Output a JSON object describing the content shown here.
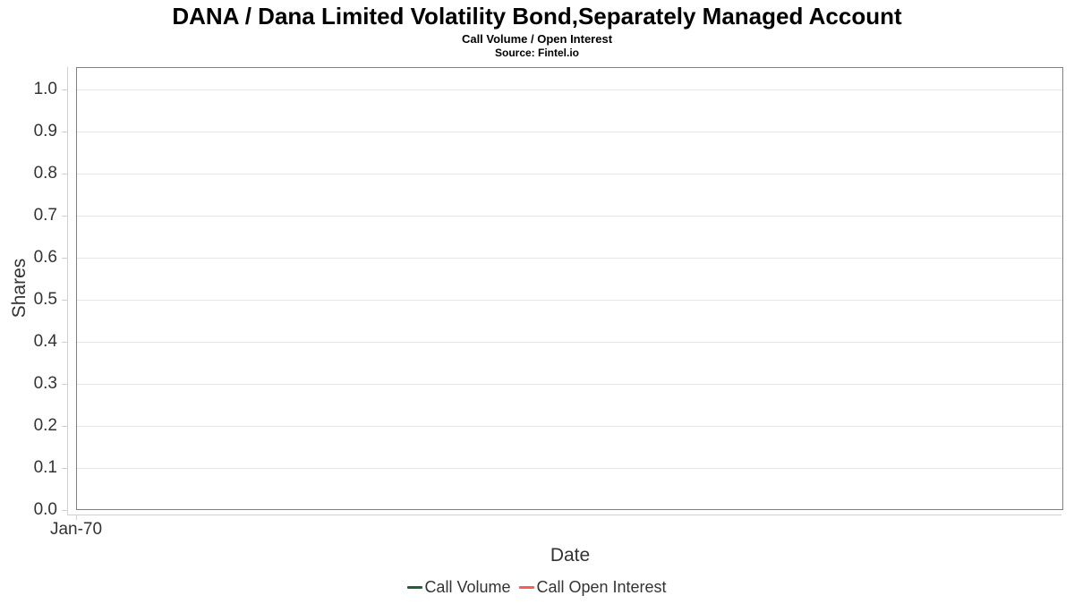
{
  "chart_data": {
    "type": "line",
    "title": "DANA / Dana Limited Volatility Bond,Separately Managed Account",
    "subtitle": "Call Volume / Open Interest",
    "source": "Source: Fintel.io",
    "xlabel": "Date",
    "ylabel": "Shares",
    "xticks": [
      "Jan-70"
    ],
    "ytick_labels": [
      "0.0",
      "0.1",
      "0.2",
      "0.3",
      "0.4",
      "0.5",
      "0.6",
      "0.7",
      "0.8",
      "0.9",
      "1.0"
    ],
    "ylim": [
      0.0,
      1.05
    ],
    "xlim_note": "single tick Jan-70 at left edge",
    "grid": true,
    "legend_position": "bottom-center",
    "series": [
      {
        "name": "Call Volume",
        "color": "#275b3d",
        "x": [],
        "values": []
      },
      {
        "name": "Call Open Interest",
        "color": "#fb5b5b",
        "x": [],
        "values": []
      }
    ],
    "colors": {
      "plot_border": "#808080",
      "gridline": "#e6e6e6",
      "axis_line": "#d0d0d0",
      "tick_label": "#333333",
      "title_text": "#000000",
      "background": "#ffffff"
    }
  }
}
